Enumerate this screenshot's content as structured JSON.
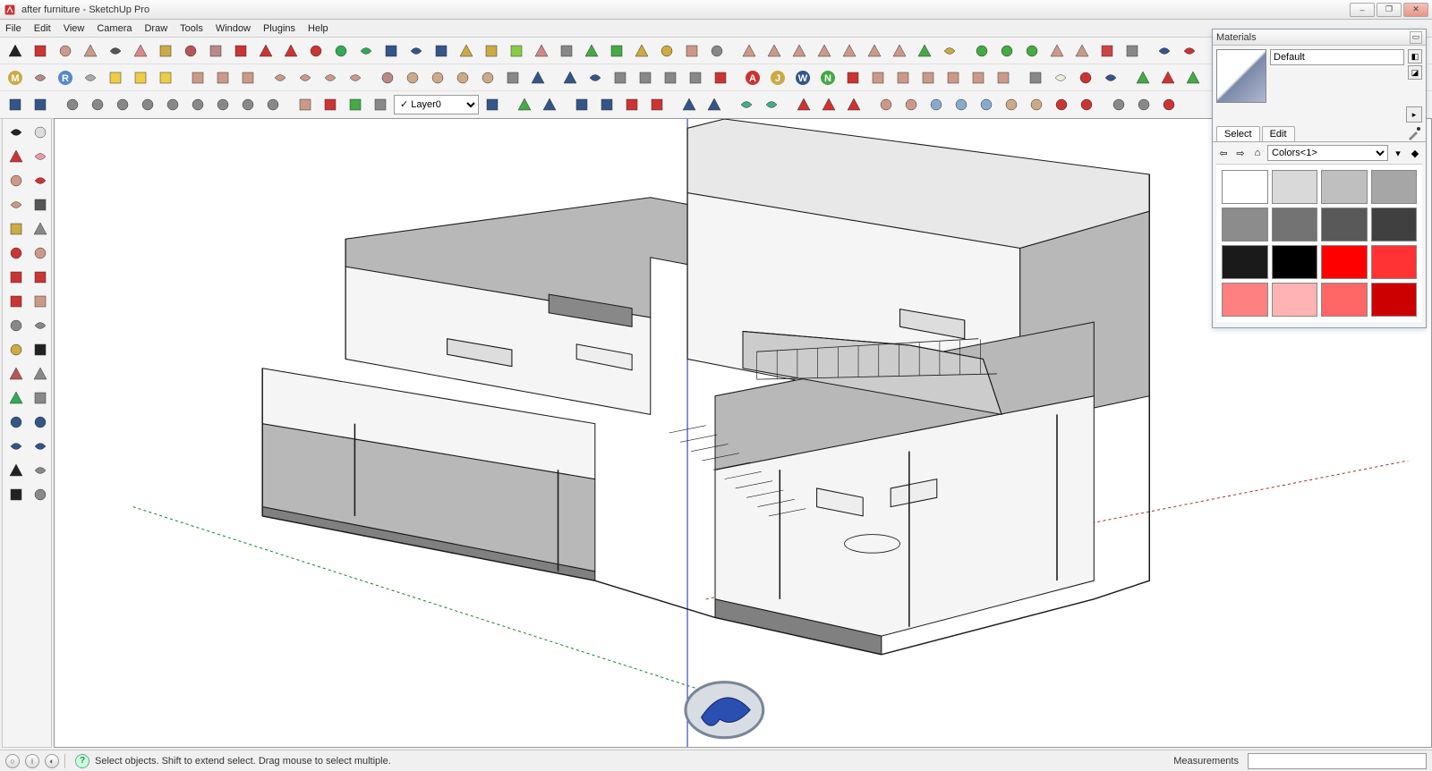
{
  "window": {
    "title": "after furniture - SketchUp Pro",
    "controls": {
      "min": "–",
      "max": "❐",
      "close": "✕"
    }
  },
  "menu": [
    "File",
    "Edit",
    "View",
    "Camera",
    "Draw",
    "Tools",
    "Window",
    "Plugins",
    "Help"
  ],
  "layer_dropdown": "Layer0",
  "toolbar_row1_icons": [
    {
      "n": "select",
      "c": "#222"
    },
    {
      "n": "line",
      "c": "#c33"
    },
    {
      "n": "rectangle",
      "c": "#c98"
    },
    {
      "n": "circle",
      "c": "#c98"
    },
    {
      "n": "arc",
      "c": "#555"
    },
    {
      "n": "eraser",
      "c": "#d88"
    },
    {
      "n": "tape",
      "c": "#ca4"
    },
    {
      "n": "paint",
      "c": "#b55"
    },
    {
      "n": "pushpull",
      "c": "#b88"
    },
    {
      "n": "move",
      "c": "#c33"
    },
    {
      "n": "rotate",
      "c": "#c33"
    },
    {
      "n": "offset",
      "c": "#c33"
    },
    {
      "n": "scale",
      "c": "#c33"
    },
    {
      "n": "orbit",
      "c": "#3a5"
    },
    {
      "n": "pan",
      "c": "#3a5"
    },
    {
      "n": "zoom",
      "c": "#358"
    },
    {
      "n": "zoom-window",
      "c": "#358"
    },
    {
      "n": "zoom-extents",
      "c": "#358"
    },
    {
      "n": "follow",
      "c": "#ca4"
    },
    {
      "n": "sandbox1",
      "c": "#ca4"
    },
    {
      "n": "sandbox2",
      "c": "#8c4"
    },
    {
      "n": "photomatch",
      "c": "#c88"
    },
    {
      "n": "outliner",
      "c": "#888"
    },
    {
      "n": "google",
      "c": "#4a4"
    },
    {
      "n": "ge-place",
      "c": "#4a4"
    },
    {
      "n": "ge-get",
      "c": "#ca4"
    },
    {
      "n": "ge-toggle",
      "c": "#ca4"
    },
    {
      "n": "3dwh",
      "c": "#c98"
    },
    {
      "n": "share",
      "c": "#888"
    },
    {
      "n": "sep"
    },
    {
      "n": "solid1",
      "c": "#c98"
    },
    {
      "n": "solid2",
      "c": "#c98"
    },
    {
      "n": "solid3",
      "c": "#c98"
    },
    {
      "n": "solid4",
      "c": "#c98"
    },
    {
      "n": "solid5",
      "c": "#c98"
    },
    {
      "n": "solid6",
      "c": "#c98"
    },
    {
      "n": "solid7",
      "c": "#c98"
    },
    {
      "n": "layers",
      "c": "#4a4"
    },
    {
      "n": "sun",
      "c": "#ca4"
    },
    {
      "n": "sep"
    },
    {
      "n": "tree1",
      "c": "#4a4"
    },
    {
      "n": "tree2",
      "c": "#4a4"
    },
    {
      "n": "tree3",
      "c": "#4a4"
    },
    {
      "n": "shape1",
      "c": "#c98"
    },
    {
      "n": "shape2",
      "c": "#c98"
    },
    {
      "n": "ball",
      "c": "#c44"
    },
    {
      "n": "cone",
      "c": "#888"
    },
    {
      "n": "sep"
    },
    {
      "n": "plugin1",
      "c": "#358"
    },
    {
      "n": "plugin2",
      "c": "#c33"
    }
  ],
  "toolbar_row2_icons": [
    {
      "n": "style-m",
      "c": "#ca4",
      "t": "M"
    },
    {
      "n": "style-ball1",
      "c": "#b88"
    },
    {
      "n": "style-r",
      "c": "#58c",
      "t": "R"
    },
    {
      "n": "style-ball2",
      "c": "#aaa"
    },
    {
      "n": "style-y1",
      "c": "#ec4"
    },
    {
      "n": "style-y2",
      "c": "#ec4"
    },
    {
      "n": "sun2",
      "c": "#ec4"
    },
    {
      "n": "sep"
    },
    {
      "n": "section1",
      "c": "#c98"
    },
    {
      "n": "section2",
      "c": "#c98"
    },
    {
      "n": "section3",
      "c": "#c98"
    },
    {
      "n": "sep"
    },
    {
      "n": "render1",
      "c": "#c98"
    },
    {
      "n": "render2",
      "c": "#c98"
    },
    {
      "n": "render3",
      "c": "#c98"
    },
    {
      "n": "render4",
      "c": "#c98"
    },
    {
      "n": "sep"
    },
    {
      "n": "mat-ball1",
      "c": "#b88"
    },
    {
      "n": "mat-ball2",
      "c": "#ca8"
    },
    {
      "n": "mat-ball3",
      "c": "#ca8"
    },
    {
      "n": "mat-ball4",
      "c": "#ca8"
    },
    {
      "n": "mat-ball5",
      "c": "#ca8"
    },
    {
      "n": "hand",
      "c": "#888"
    },
    {
      "n": "toggle",
      "c": "#358"
    },
    {
      "n": "sep"
    },
    {
      "n": "target",
      "c": "#358"
    },
    {
      "n": "target2",
      "c": "#358"
    },
    {
      "n": "lock",
      "c": "#888"
    },
    {
      "n": "dim1",
      "c": "#888"
    },
    {
      "n": "dim2",
      "c": "#888"
    },
    {
      "n": "dim3",
      "c": "#888"
    },
    {
      "n": "dim4",
      "c": "#c33"
    },
    {
      "n": "sep"
    },
    {
      "n": "jhs-a",
      "c": "#c33",
      "t": "A"
    },
    {
      "n": "jhs-j",
      "c": "#ca4",
      "t": "J"
    },
    {
      "n": "jhs-w",
      "c": "#358",
      "t": "W"
    },
    {
      "n": "jhs-n",
      "c": "#4a4",
      "t": "N"
    },
    {
      "n": "jhs-star",
      "c": "#c33"
    },
    {
      "n": "box1",
      "c": "#c98"
    },
    {
      "n": "box2",
      "c": "#c98"
    },
    {
      "n": "box3",
      "c": "#c98"
    },
    {
      "n": "box4",
      "c": "#c98"
    },
    {
      "n": "box5",
      "c": "#c98"
    },
    {
      "n": "box6",
      "c": "#c98"
    },
    {
      "n": "sep"
    },
    {
      "n": "door",
      "c": "#888"
    },
    {
      "n": "egg",
      "c": "#eed"
    },
    {
      "n": "cone2",
      "c": "#c33"
    },
    {
      "n": "plugin3",
      "c": "#358"
    },
    {
      "n": "sep"
    },
    {
      "n": "plant1",
      "c": "#4a4"
    },
    {
      "n": "plant2",
      "c": "#c33"
    },
    {
      "n": "plant3",
      "c": "#4a4"
    },
    {
      "n": "plant4",
      "c": "#c33"
    },
    {
      "n": "plant5",
      "c": "#c33"
    }
  ],
  "toolbar_row3_icons": [
    {
      "n": "sel-edge",
      "c": "#358"
    },
    {
      "n": "sel-face",
      "c": "#358"
    },
    {
      "n": "sep"
    },
    {
      "n": "comp1",
      "c": "#888"
    },
    {
      "n": "comp2",
      "c": "#888"
    },
    {
      "n": "comp3",
      "c": "#888"
    },
    {
      "n": "comp4",
      "c": "#888"
    },
    {
      "n": "comp5",
      "c": "#888"
    },
    {
      "n": "comp6",
      "c": "#888"
    },
    {
      "n": "comp7",
      "c": "#888"
    },
    {
      "n": "comp8",
      "c": "#888"
    },
    {
      "n": "comp9",
      "c": "#888"
    },
    {
      "n": "sep"
    },
    {
      "n": "ext1",
      "c": "#c98"
    },
    {
      "n": "ext2",
      "c": "#c33"
    },
    {
      "n": "ext3",
      "c": "#4a4"
    },
    {
      "n": "ext4",
      "c": "#888"
    },
    {
      "n": "layer-sel"
    },
    {
      "n": "info",
      "c": "#358"
    },
    {
      "n": "sep"
    },
    {
      "n": "flag-g",
      "c": "#4a4"
    },
    {
      "n": "flag-b",
      "c": "#358"
    },
    {
      "n": "sep"
    },
    {
      "n": "arr1",
      "c": "#358"
    },
    {
      "n": "arr2",
      "c": "#358"
    },
    {
      "n": "arr3",
      "c": "#c33"
    },
    {
      "n": "arr4",
      "c": "#c33"
    },
    {
      "n": "sep"
    },
    {
      "n": "shear1",
      "c": "#358"
    },
    {
      "n": "shear2",
      "c": "#358"
    },
    {
      "n": "sep"
    },
    {
      "n": "mirror1",
      "c": "#4a8"
    },
    {
      "n": "mirror2",
      "c": "#4a8"
    },
    {
      "n": "sep"
    },
    {
      "n": "curve1",
      "c": "#c33"
    },
    {
      "n": "curve2",
      "c": "#c33"
    },
    {
      "n": "curve3",
      "c": "#c33"
    },
    {
      "n": "sep"
    },
    {
      "n": "prim1",
      "c": "#c98"
    },
    {
      "n": "prim2",
      "c": "#c98"
    },
    {
      "n": "prim3",
      "c": "#8ac"
    },
    {
      "n": "prim4",
      "c": "#8ac"
    },
    {
      "n": "prim5",
      "c": "#8ac"
    },
    {
      "n": "prim6",
      "c": "#ca8"
    },
    {
      "n": "prim7",
      "c": "#ca8"
    },
    {
      "n": "prim8",
      "c": "#c33"
    },
    {
      "n": "prim9",
      "c": "#c33"
    },
    {
      "n": "sep"
    },
    {
      "n": "misc1",
      "c": "#888"
    },
    {
      "n": "misc2",
      "c": "#888"
    },
    {
      "n": "misc3",
      "c": "#c33"
    }
  ],
  "left_tool_pairs": [
    [
      "pointer",
      "#222",
      "sheet",
      "#ddd"
    ],
    [
      "pencil-red",
      "#c33",
      "eraser2",
      "#e9a"
    ],
    [
      "rect2",
      "#c98",
      "pencil2",
      "#c33"
    ],
    [
      "circle2",
      "#c98",
      "arc2",
      "#555"
    ],
    [
      "poly",
      "#ca4",
      "sphere",
      "#888"
    ],
    [
      "star1",
      "#c33",
      "plane",
      "#c98"
    ],
    [
      "rot1",
      "#c33",
      "rot2",
      "#c33"
    ],
    [
      "undo",
      "#c33",
      "redo",
      "#c98"
    ],
    [
      "ruler",
      "#888",
      "compass",
      "#888"
    ],
    [
      "tape2",
      "#ca4",
      "text",
      "#222"
    ],
    [
      "paint2",
      "#b55",
      "wrench",
      "#888"
    ],
    [
      "orbit2",
      "#3a5",
      "pan2",
      "#888"
    ],
    [
      "zoom2",
      "#358",
      "zoom3",
      "#358"
    ],
    [
      "ze1",
      "#358",
      "ze2",
      "#358"
    ],
    [
      "person",
      "#222",
      "eye",
      "#888"
    ],
    [
      "feet",
      "#222",
      "cross",
      "#888"
    ]
  ],
  "materials": {
    "title": "Materials",
    "current_name": "Default",
    "tabs": [
      "Select",
      "Edit"
    ],
    "active_tab": 0,
    "library": "Colors<1>",
    "swatches": [
      "#ffffff",
      "#d9d9d9",
      "#bfbfbf",
      "#a6a6a6",
      "#8c8c8c",
      "#737373",
      "#595959",
      "#404040",
      "#1a1a1a",
      "#000000",
      "#ff0000",
      "#ff3333",
      "#ff8080",
      "#ffb3b3",
      "#ff6666",
      "#cc0000"
    ]
  },
  "status": {
    "hint": "Select objects. Shift to extend select. Drag mouse to select multiple.",
    "measurements_label": "Measurements"
  },
  "viewport": {
    "background": "#ffffff",
    "axis_blue": "#1030c0",
    "axis_red": "#b03030",
    "axis_green": "#208030",
    "building_fill": "#f5f5f5",
    "building_shade": "#b8b8b8",
    "building_dark": "#808080",
    "edge": "#1a1a1a"
  }
}
